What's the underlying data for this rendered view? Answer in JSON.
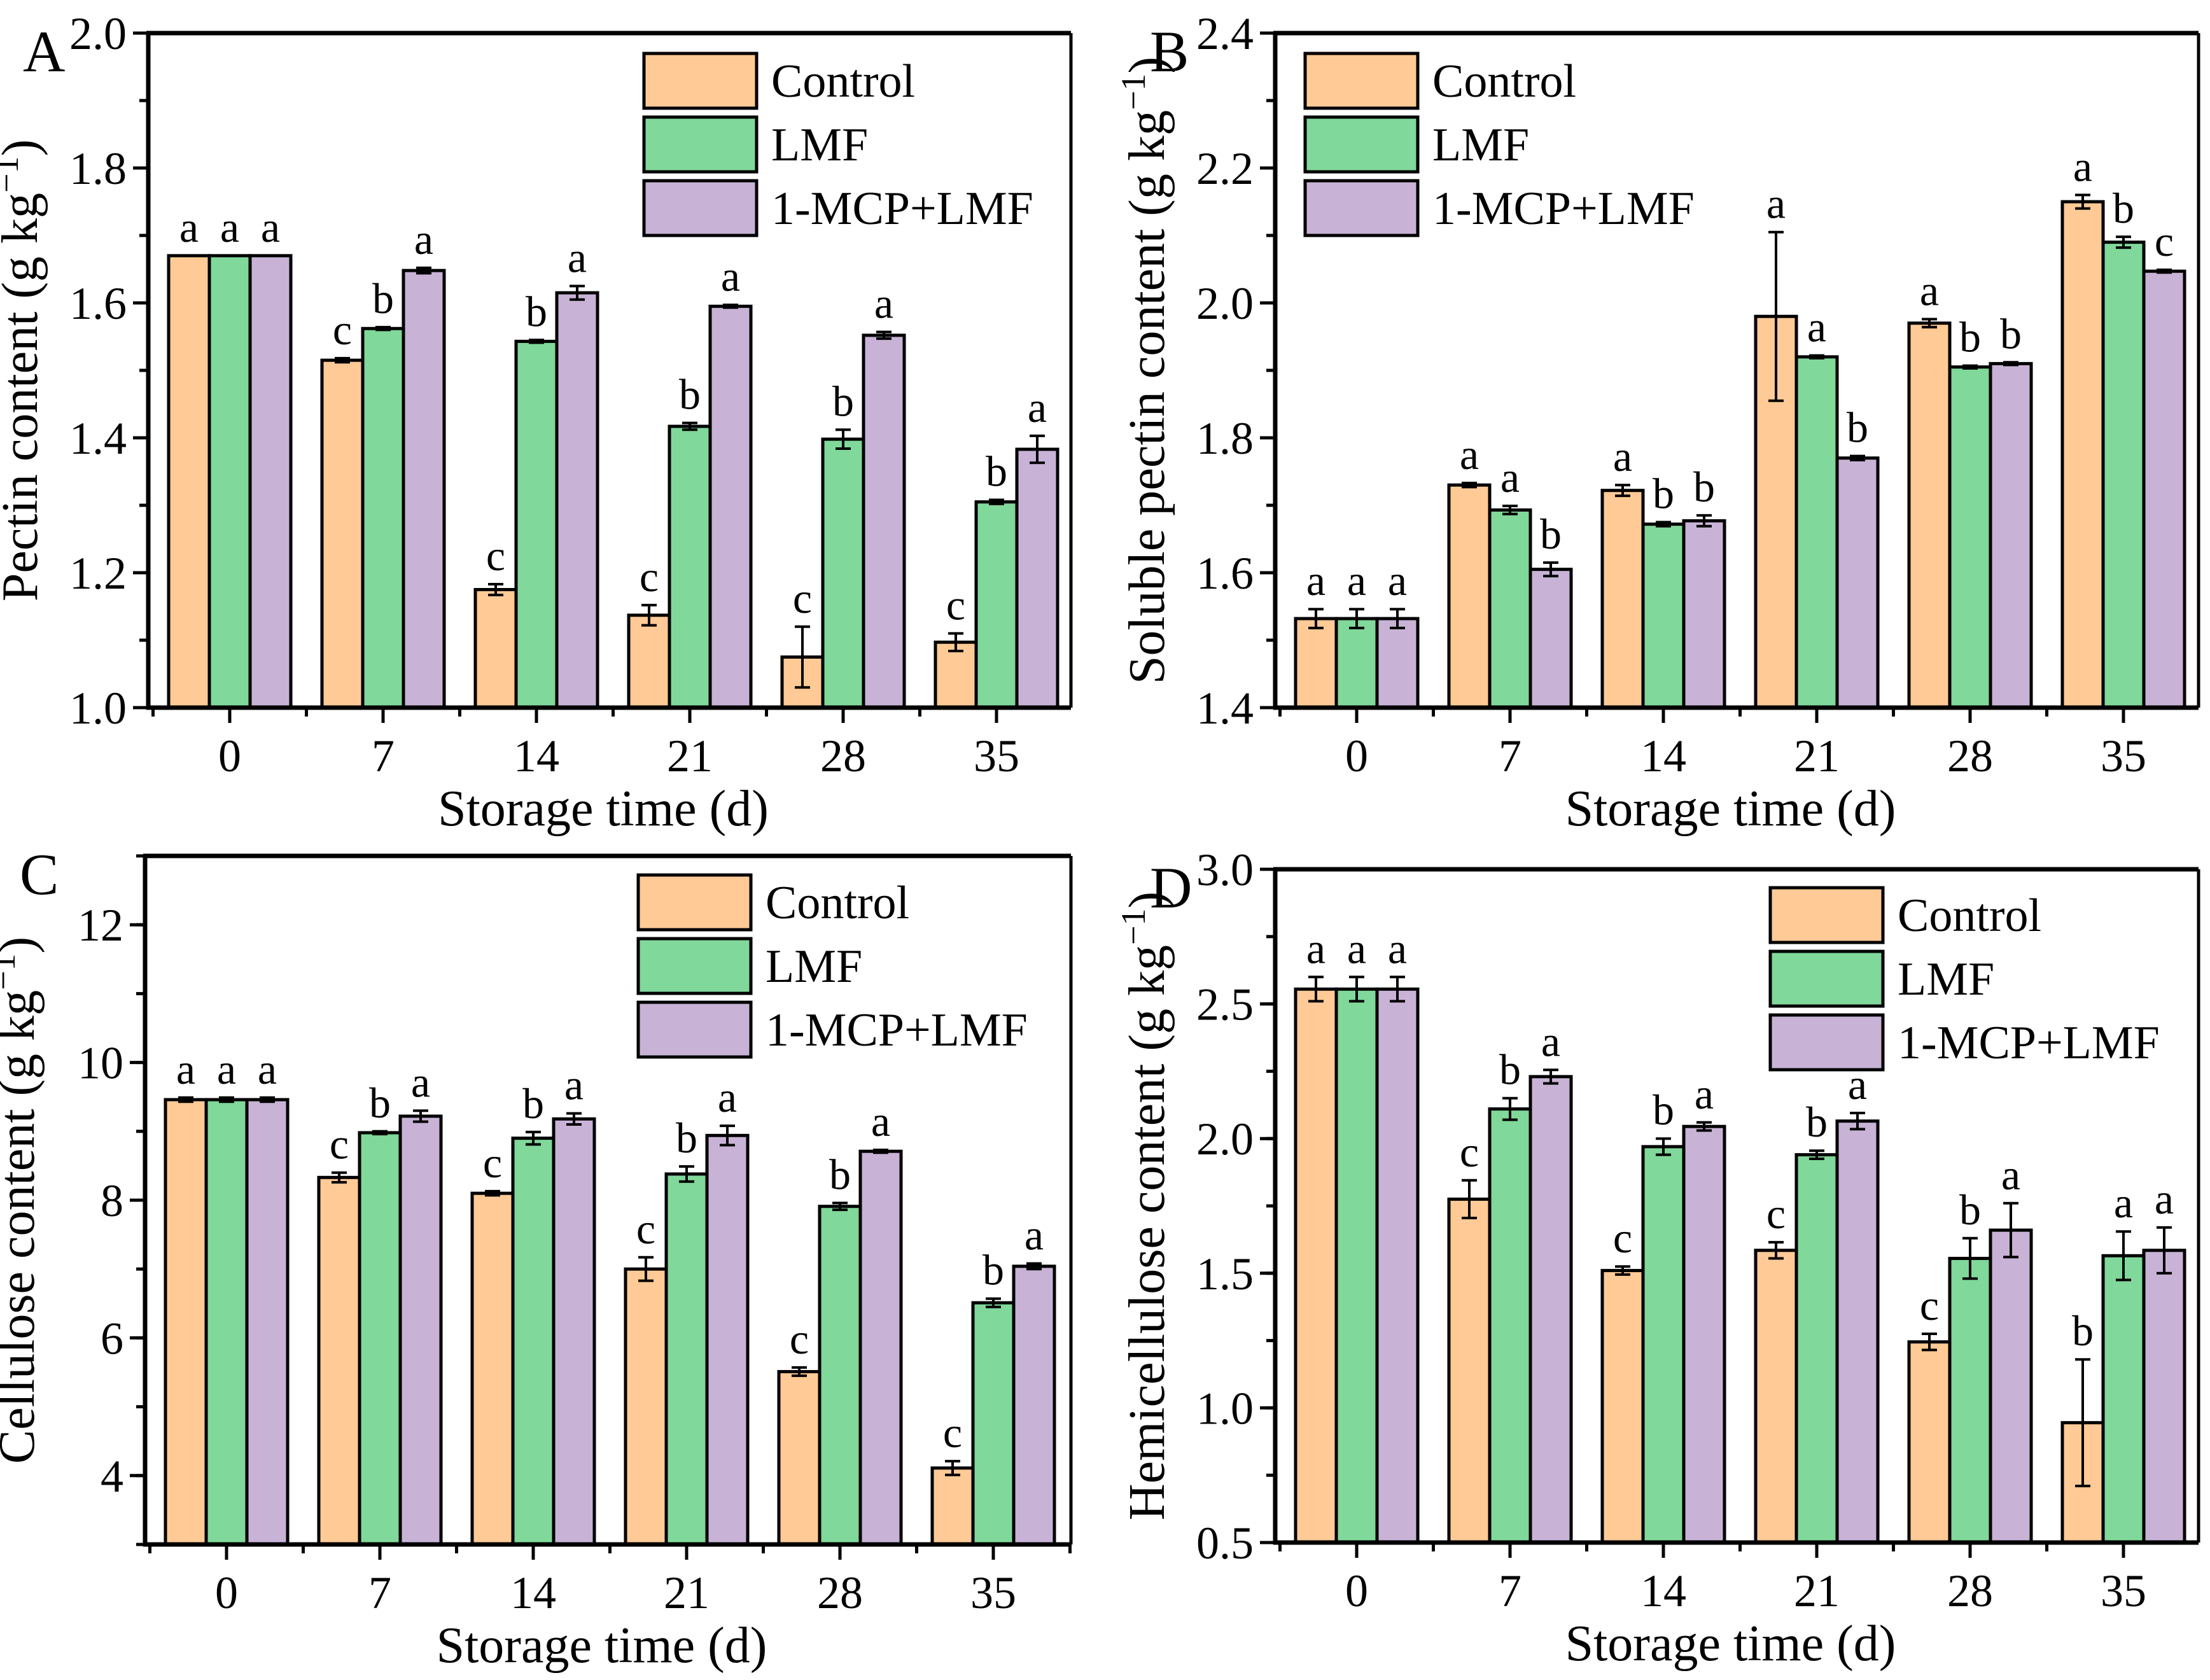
{
  "figure": {
    "series_colors": {
      "Control": "#FFCA96",
      "LMF": "#80D89A",
      "1-MCP+LMF": "#C8B3D6"
    }
  },
  "chart_data": [
    {
      "panel": "A",
      "type": "bar",
      "xlabel": "Storage time (d)",
      "ylabel": "Pectin content (g kg",
      "ylabel_unit_exp": "−1",
      "ylabel_close": ")",
      "categories": [
        "0",
        "7",
        "14",
        "21",
        "28",
        "35"
      ],
      "ylim": [
        1.0,
        2.0
      ],
      "yticks": [
        1.0,
        1.2,
        1.4,
        1.6,
        1.8,
        2.0
      ],
      "ytick_labels": [
        "1.0",
        "1.2",
        "1.4",
        "1.6",
        "1.8",
        "2.0"
      ],
      "minor_step": 0.1,
      "legend": {
        "placement": "top-right",
        "entries": [
          "Control",
          "LMF",
          "1-MCP+LMF"
        ]
      },
      "series": [
        {
          "name": "Control",
          "values": [
            1.67,
            1.515,
            1.175,
            1.137,
            1.075,
            1.097
          ],
          "errors": [
            0.0,
            0.003,
            0.008,
            0.015,
            0.045,
            0.013
          ],
          "letters": [
            "a",
            "c",
            "c",
            "c",
            "c",
            "c"
          ]
        },
        {
          "name": "LMF",
          "values": [
            1.67,
            1.562,
            1.543,
            1.417,
            1.398,
            1.305
          ],
          "errors": [
            0.0,
            0.002,
            0.002,
            0.005,
            0.014,
            0.003
          ],
          "letters": [
            "a",
            "b",
            "b",
            "b",
            "b",
            "b"
          ]
        },
        {
          "name": "1-MCP+LMF",
          "values": [
            1.67,
            1.648,
            1.615,
            1.595,
            1.552,
            1.383
          ],
          "errors": [
            0.0,
            0.004,
            0.01,
            0.002,
            0.005,
            0.02
          ],
          "letters": [
            "a",
            "a",
            "a",
            "a",
            "a",
            "a"
          ]
        }
      ]
    },
    {
      "panel": "B",
      "type": "bar",
      "xlabel": "Storage time (d)",
      "ylabel": "Soluble pectin content (g kg",
      "ylabel_unit_exp": "−1",
      "ylabel_close": ")",
      "categories": [
        "0",
        "7",
        "14",
        "21",
        "28",
        "35"
      ],
      "ylim": [
        1.4,
        2.4
      ],
      "yticks": [
        1.4,
        1.6,
        1.8,
        2.0,
        2.2,
        2.4
      ],
      "ytick_labels": [
        "1.4",
        "1.6",
        "1.8",
        "2.0",
        "2.2",
        "2.4"
      ],
      "minor_step": 0.1,
      "legend": {
        "placement": "top-left",
        "entries": [
          "Control",
          "LMF",
          "1-MCP+LMF"
        ]
      },
      "series": [
        {
          "name": "Control",
          "values": [
            1.532,
            1.73,
            1.722,
            1.98,
            1.97,
            2.15
          ],
          "errors": [
            0.014,
            0.003,
            0.008,
            0.125,
            0.006,
            0.01
          ],
          "letters": [
            "a",
            "a",
            "a",
            "a",
            "a",
            "a"
          ]
        },
        {
          "name": "LMF",
          "values": [
            1.532,
            1.693,
            1.672,
            1.92,
            1.905,
            2.09
          ],
          "errors": [
            0.014,
            0.006,
            0.003,
            0.002,
            0.002,
            0.008
          ],
          "letters": [
            "a",
            "a",
            "b",
            "a",
            "b",
            "b"
          ]
        },
        {
          "name": "1-MCP+LMF",
          "values": [
            1.532,
            1.605,
            1.677,
            1.77,
            1.91,
            2.047
          ],
          "errors": [
            0.014,
            0.01,
            0.008,
            0.003,
            0.002,
            0.002
          ],
          "letters": [
            "a",
            "b",
            "b",
            "b",
            "b",
            "c"
          ]
        }
      ]
    },
    {
      "panel": "C",
      "type": "bar",
      "xlabel": "Storage time (d)",
      "ylabel": "Cellulose content (g kg",
      "ylabel_unit_exp": "−1",
      "ylabel_close": ")",
      "categories": [
        "0",
        "7",
        "14",
        "21",
        "28",
        "35"
      ],
      "ylim": [
        3,
        13
      ],
      "yticks": [
        4,
        6,
        8,
        10,
        12
      ],
      "ytick_labels": [
        "4",
        "6",
        "8",
        "10",
        "12"
      ],
      "minor_step": 1,
      "legend": {
        "placement": "top-right",
        "entries": [
          "Control",
          "LMF",
          "1-MCP+LMF"
        ]
      },
      "series": [
        {
          "name": "Control",
          "values": [
            9.46,
            8.33,
            8.1,
            7.0,
            5.51,
            4.11
          ],
          "errors": [
            0.03,
            0.07,
            0.03,
            0.17,
            0.06,
            0.1
          ],
          "letters": [
            "a",
            "c",
            "c",
            "c",
            "c",
            "c"
          ]
        },
        {
          "name": "LMF",
          "values": [
            9.46,
            8.98,
            8.9,
            8.38,
            7.91,
            6.51
          ],
          "errors": [
            0.03,
            0.02,
            0.09,
            0.11,
            0.05,
            0.06
          ],
          "letters": [
            "a",
            "b",
            "b",
            "b",
            "b",
            "b"
          ]
        },
        {
          "name": "1-MCP+LMF",
          "values": [
            9.46,
            9.22,
            9.18,
            8.94,
            8.71,
            7.04
          ],
          "errors": [
            0.03,
            0.08,
            0.08,
            0.14,
            0.02,
            0.04
          ],
          "letters": [
            "a",
            "a",
            "a",
            "a",
            "a",
            "a"
          ]
        }
      ]
    },
    {
      "panel": "D",
      "type": "bar",
      "xlabel": "Storage time (d)",
      "ylabel": "Hemicellulose content (g kg",
      "ylabel_unit_exp": "−1",
      "ylabel_close": ")",
      "categories": [
        "0",
        "7",
        "14",
        "21",
        "28",
        "35"
      ],
      "ylim": [
        0.5,
        3.0
      ],
      "yticks": [
        0.5,
        1.0,
        1.5,
        2.0,
        2.5,
        3.0
      ],
      "ytick_labels": [
        "0.5",
        "1.0",
        "1.5",
        "2.0",
        "2.5",
        "3.0"
      ],
      "minor_step": 0.25,
      "legend": {
        "placement": "top-right",
        "entries": [
          "Control",
          "LMF",
          "1-MCP+LMF"
        ]
      },
      "series": [
        {
          "name": "Control",
          "values": [
            2.555,
            1.775,
            1.51,
            1.585,
            1.245,
            0.945
          ],
          "errors": [
            0.045,
            0.07,
            0.015,
            0.03,
            0.03,
            0.235
          ],
          "letters": [
            "a",
            "c",
            "c",
            "c",
            "c",
            "b"
          ]
        },
        {
          "name": "LMF",
          "values": [
            2.555,
            2.11,
            1.97,
            1.94,
            1.555,
            1.565
          ],
          "errors": [
            0.045,
            0.04,
            0.03,
            0.015,
            0.075,
            0.09
          ],
          "letters": [
            "a",
            "b",
            "b",
            "b",
            "b",
            "a"
          ]
        },
        {
          "name": "1-MCP+LMF",
          "values": [
            2.555,
            2.23,
            2.045,
            2.065,
            1.66,
            1.585
          ],
          "errors": [
            0.045,
            0.025,
            0.015,
            0.03,
            0.1,
            0.085
          ],
          "letters": [
            "a",
            "a",
            "a",
            "a",
            "a",
            "a"
          ]
        }
      ]
    }
  ]
}
